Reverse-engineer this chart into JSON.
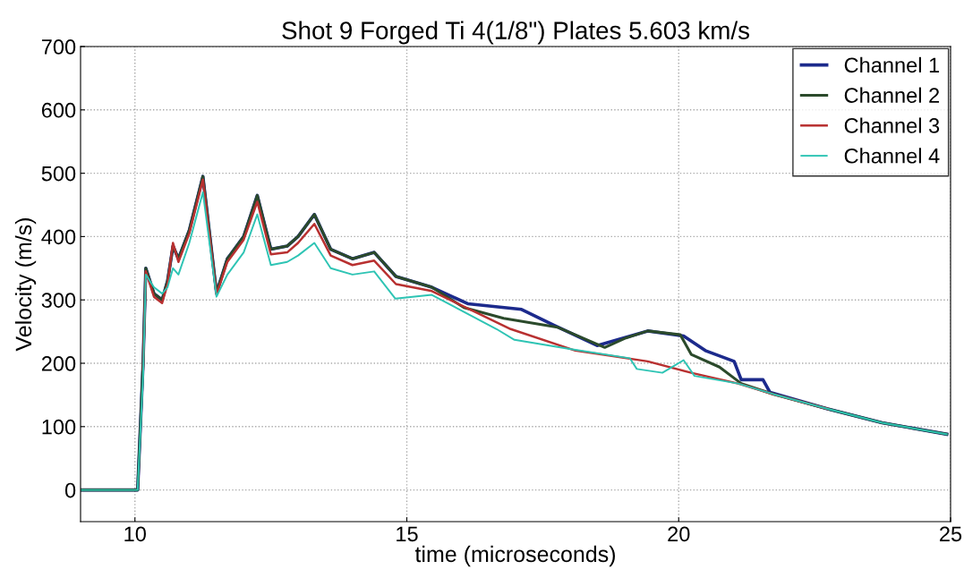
{
  "chart_data": {
    "type": "line",
    "title": "Shot 9 Forged Ti 4(1/8\") Plates 5.603 km/s",
    "xlabel": "time (microseconds)",
    "ylabel": "Velocity (m/s)",
    "xlim": [
      9,
      25
    ],
    "ylim": [
      -50,
      700
    ],
    "xticks": [
      10,
      15,
      20,
      25
    ],
    "yticks": [
      0,
      100,
      200,
      300,
      400,
      500,
      600,
      700
    ],
    "grid": true,
    "legend": "top right",
    "series": [
      {
        "name": "Channel 1",
        "color": "#1c2a8c",
        "x": [
          9.0,
          10.05,
          10.15,
          10.2,
          10.35,
          10.5,
          10.6,
          10.7,
          10.8,
          11.0,
          11.25,
          11.5,
          11.7,
          12.0,
          12.25,
          12.5,
          12.8,
          13.0,
          13.3,
          13.6,
          14.0,
          14.4,
          14.8,
          15.46,
          16.12,
          17.11,
          17.71,
          18.5,
          19.43,
          20.09,
          20.49,
          21.02,
          21.15,
          21.55,
          21.68,
          22.74,
          23.74,
          24.93
        ],
        "values": [
          0,
          0,
          200,
          350,
          310,
          300,
          330,
          385,
          365,
          410,
          495,
          311,
          365,
          400,
          465,
          380,
          385,
          400,
          435,
          380,
          365,
          375,
          337,
          320,
          294,
          285,
          260,
          228,
          251,
          243,
          220,
          203,
          174,
          174,
          154,
          128,
          106,
          88
        ]
      },
      {
        "name": "Channel 2",
        "color": "#2b4a2b",
        "x": [
          9.0,
          10.05,
          10.15,
          10.2,
          10.35,
          10.5,
          10.6,
          10.7,
          10.8,
          11.0,
          11.25,
          11.5,
          11.7,
          12.0,
          12.25,
          12.5,
          12.8,
          13.0,
          13.3,
          13.6,
          14.0,
          14.4,
          14.8,
          15.46,
          16.05,
          16.78,
          17.77,
          18.64,
          19.03,
          19.43,
          20.03,
          20.23,
          20.75,
          21.15,
          21.75,
          22.74,
          23.74,
          24.93
        ],
        "values": [
          0,
          0,
          200,
          350,
          310,
          300,
          330,
          385,
          365,
          410,
          495,
          311,
          365,
          400,
          465,
          380,
          385,
          400,
          435,
          380,
          365,
          375,
          337,
          320,
          288,
          271,
          257,
          225,
          240,
          251,
          245,
          214,
          194,
          168,
          151,
          128,
          106,
          88
        ]
      },
      {
        "name": "Channel 3",
        "color": "#b83030",
        "x": [
          10.15,
          10.2,
          10.35,
          10.5,
          10.6,
          10.7,
          10.8,
          11.0,
          11.25,
          11.5,
          11.7,
          12.0,
          12.25,
          12.5,
          12.8,
          13.0,
          13.3,
          13.6,
          14.0,
          14.4,
          14.8,
          15.46,
          16.91,
          18.1,
          19.43,
          20.23,
          21.09,
          21.75,
          22.74
        ],
        "values": [
          190,
          345,
          305,
          295,
          325,
          390,
          360,
          405,
          490,
          308,
          360,
          395,
          455,
          372,
          375,
          390,
          420,
          370,
          355,
          362,
          325,
          314,
          254,
          220,
          203,
          185,
          168,
          151,
          128
        ]
      },
      {
        "name": "Channel 4",
        "color": "#2ec4b4",
        "x": [
          9.0,
          10.05,
          10.15,
          10.2,
          10.35,
          10.5,
          10.6,
          10.7,
          10.8,
          11.0,
          11.25,
          11.5,
          11.7,
          12.0,
          12.25,
          12.5,
          12.8,
          13.0,
          13.3,
          13.6,
          14.0,
          14.4,
          14.79,
          15.46,
          16.65,
          16.98,
          17.97,
          19.1,
          19.23,
          19.7,
          20.09,
          20.29,
          21.09,
          21.75,
          22.74,
          23.74,
          24.93
        ],
        "values": [
          0,
          0,
          180,
          340,
          320,
          310,
          320,
          350,
          340,
          390,
          470,
          305,
          340,
          375,
          435,
          355,
          360,
          370,
          390,
          350,
          340,
          345,
          302,
          308,
          254,
          237,
          223,
          208,
          191,
          185,
          205,
          180,
          168,
          151,
          128,
          106,
          88
        ]
      }
    ]
  }
}
